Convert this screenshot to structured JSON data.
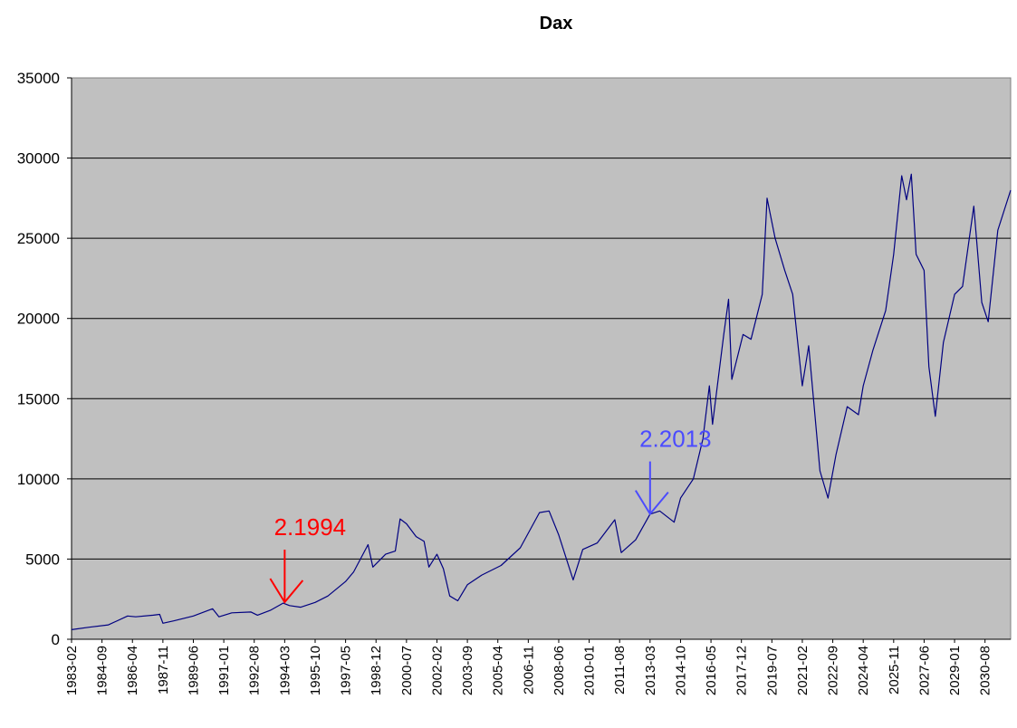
{
  "chart_data": {
    "type": "line",
    "title": "Dax",
    "xlabel": "",
    "ylabel": "",
    "ylim": [
      0,
      35000
    ],
    "yticks": [
      0,
      5000,
      10000,
      15000,
      20000,
      25000,
      30000,
      35000
    ],
    "grid": true,
    "legend": "none",
    "colors": {
      "plot_background": "#c0c0c0",
      "line": "#000080",
      "gridline": "#000000",
      "annotation_1994": "#ff0000",
      "annotation_2013": "#4b4bff"
    },
    "x_tick_labels": [
      "1983-02",
      "1984-09",
      "1986-04",
      "1987-11",
      "1989-06",
      "1991-01",
      "1992-08",
      "1994-03",
      "1995-10",
      "1997-05",
      "1998-12",
      "2000-07",
      "2002-02",
      "2003-09",
      "2005-04",
      "2006-11",
      "2008-06",
      "2010-01",
      "2011-08",
      "2013-03",
      "2014-10",
      "2016-05",
      "2017-12",
      "2019-07",
      "2021-02",
      "2022-09",
      "2024-04",
      "2025-11",
      "2027-06",
      "2029-01",
      "2030-08"
    ],
    "x_range": [
      "1983-02",
      "2031-12"
    ],
    "series": [
      {
        "points": [
          [
            "1983-02",
            600
          ],
          [
            "1984-01",
            750
          ],
          [
            "1985-01",
            900
          ],
          [
            "1986-01",
            1450
          ],
          [
            "1986-06",
            1400
          ],
          [
            "1987-05",
            1500
          ],
          [
            "1987-09",
            1550
          ],
          [
            "1987-11",
            1000
          ],
          [
            "1988-06",
            1150
          ],
          [
            "1989-06",
            1450
          ],
          [
            "1990-06",
            1900
          ],
          [
            "1990-10",
            1400
          ],
          [
            "1991-06",
            1650
          ],
          [
            "1992-06",
            1700
          ],
          [
            "1992-10",
            1500
          ],
          [
            "1993-06",
            1800
          ],
          [
            "1994-02",
            2250
          ],
          [
            "1994-06",
            2100
          ],
          [
            "1995-01",
            2000
          ],
          [
            "1995-10",
            2300
          ],
          [
            "1996-06",
            2700
          ],
          [
            "1997-05",
            3600
          ],
          [
            "1997-10",
            4200
          ],
          [
            "1998-07",
            5900
          ],
          [
            "1998-10",
            4500
          ],
          [
            "1999-06",
            5300
          ],
          [
            "1999-12",
            5500
          ],
          [
            "2000-03",
            7500
          ],
          [
            "2000-07",
            7200
          ],
          [
            "2001-01",
            6400
          ],
          [
            "2001-06",
            6100
          ],
          [
            "2001-09",
            4500
          ],
          [
            "2002-02",
            5300
          ],
          [
            "2002-06",
            4400
          ],
          [
            "2002-10",
            2700
          ],
          [
            "2003-03",
            2400
          ],
          [
            "2003-09",
            3400
          ],
          [
            "2004-06",
            4000
          ],
          [
            "2005-06",
            4600
          ],
          [
            "2006-06",
            5700
          ],
          [
            "2007-06",
            7900
          ],
          [
            "2007-12",
            8000
          ],
          [
            "2008-06",
            6500
          ],
          [
            "2009-03",
            3700
          ],
          [
            "2009-09",
            5600
          ],
          [
            "2010-06",
            6000
          ],
          [
            "2011-05",
            7450
          ],
          [
            "2011-09",
            5400
          ],
          [
            "2012-06",
            6200
          ],
          [
            "2013-03",
            7800
          ],
          [
            "2013-09",
            8000
          ],
          [
            "2014-06",
            7300
          ],
          [
            "2014-10",
            8800
          ],
          [
            "2015-06",
            10000
          ],
          [
            "2015-12",
            12500
          ],
          [
            "2016-04",
            15800
          ],
          [
            "2016-06",
            13400
          ],
          [
            "2017-01",
            19000
          ],
          [
            "2017-04",
            21200
          ],
          [
            "2017-06",
            16200
          ],
          [
            "2018-01",
            19000
          ],
          [
            "2018-06",
            18700
          ],
          [
            "2019-01",
            21500
          ],
          [
            "2019-04",
            27500
          ],
          [
            "2019-09",
            25000
          ],
          [
            "2020-03",
            23000
          ],
          [
            "2020-08",
            21500
          ],
          [
            "2021-02",
            15800
          ],
          [
            "2021-06",
            18300
          ],
          [
            "2022-01",
            10500
          ],
          [
            "2022-06",
            8800
          ],
          [
            "2022-11",
            11500
          ],
          [
            "2023-06",
            14500
          ],
          [
            "2024-01",
            14000
          ],
          [
            "2024-04",
            15800
          ],
          [
            "2024-10",
            18000
          ],
          [
            "2025-06",
            20500
          ],
          [
            "2025-11",
            24000
          ],
          [
            "2026-04",
            28900
          ],
          [
            "2026-07",
            27400
          ],
          [
            "2026-10",
            29000
          ],
          [
            "2027-01",
            24000
          ],
          [
            "2027-06",
            23000
          ],
          [
            "2027-09",
            17000
          ],
          [
            "2028-01",
            13900
          ],
          [
            "2028-06",
            18500
          ],
          [
            "2029-01",
            21500
          ],
          [
            "2029-06",
            22000
          ],
          [
            "2030-01",
            27000
          ],
          [
            "2030-06",
            21000
          ],
          [
            "2030-10",
            19800
          ],
          [
            "2031-04",
            25500
          ],
          [
            "2031-12",
            28000
          ]
        ]
      }
    ],
    "annotations": [
      {
        "label": "2.1994",
        "x": "1994-03",
        "y": 2200,
        "color_key": "annotation_1994"
      },
      {
        "label": "2.2013",
        "x": "2013-03",
        "y": 7700,
        "color_key": "annotation_2013"
      }
    ]
  }
}
